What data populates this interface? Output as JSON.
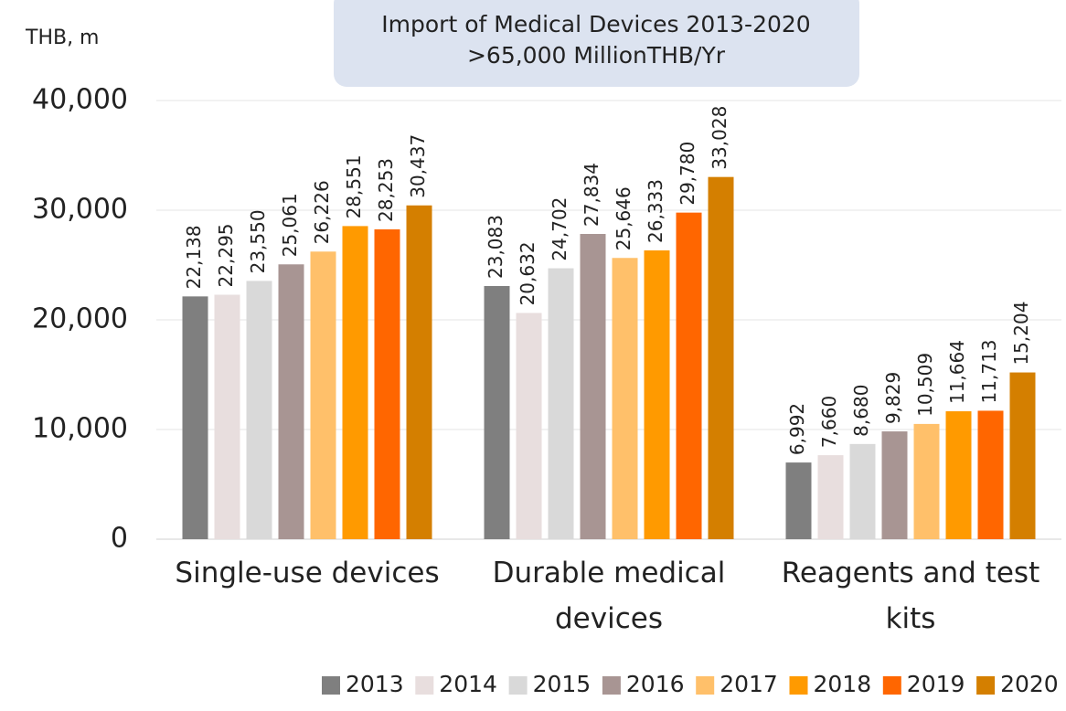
{
  "chart_data": {
    "type": "bar",
    "title": "Import of Medical Devices 2013-2020",
    "subtitle": ">65,000 MillionTHB/Yr",
    "y_label": "THB, m",
    "categories": [
      "Single-use devices",
      "Durable medical devices",
      "Reagents and test kits"
    ],
    "series": [
      {
        "name": "2013",
        "color": "#7f7f7f",
        "values": [
          22138,
          23083,
          6992
        ],
        "value_labels": [
          "22,138",
          "23,083",
          "6,992"
        ]
      },
      {
        "name": "2014",
        "color": "#e8dede",
        "values": [
          22295,
          20632,
          7660
        ],
        "value_labels": [
          "22,295",
          "20,632",
          "7,660"
        ]
      },
      {
        "name": "2015",
        "color": "#d9d9d9",
        "values": [
          23550,
          24702,
          8680
        ],
        "value_labels": [
          "23,550",
          "24,702",
          "8,680"
        ]
      },
      {
        "name": "2016",
        "color": "#a89593",
        "values": [
          25061,
          27834,
          9829
        ],
        "value_labels": [
          "25,061",
          "27,834",
          "9,829"
        ]
      },
      {
        "name": "2017",
        "color": "#ffc06a",
        "values": [
          26226,
          25646,
          10509
        ],
        "value_labels": [
          "26,226",
          "25,646",
          "10,509"
        ]
      },
      {
        "name": "2018",
        "color": "#ff9a00",
        "values": [
          28551,
          26333,
          11664
        ],
        "value_labels": [
          "28,551",
          "26,333",
          "11,664"
        ]
      },
      {
        "name": "2019",
        "color": "#ff6600",
        "values": [
          28253,
          29780,
          11713
        ],
        "value_labels": [
          "28,253",
          "29,780",
          "11,713"
        ]
      },
      {
        "name": "2020",
        "color": "#d47f00",
        "values": [
          30437,
          33028,
          15204
        ],
        "value_labels": [
          "30,437",
          "33,028",
          "15,204"
        ]
      }
    ],
    "ylim": [
      0,
      40000
    ],
    "yticks": [
      0,
      {
        "value": 10000,
        "label": "10,000"
      },
      {
        "value": 20000,
        "label": "20,000"
      },
      {
        "value": 30000,
        "label": "30,000"
      },
      {
        "value": 40000,
        "label": "40,000"
      }
    ],
    "grid": true,
    "legend": "bottom"
  }
}
